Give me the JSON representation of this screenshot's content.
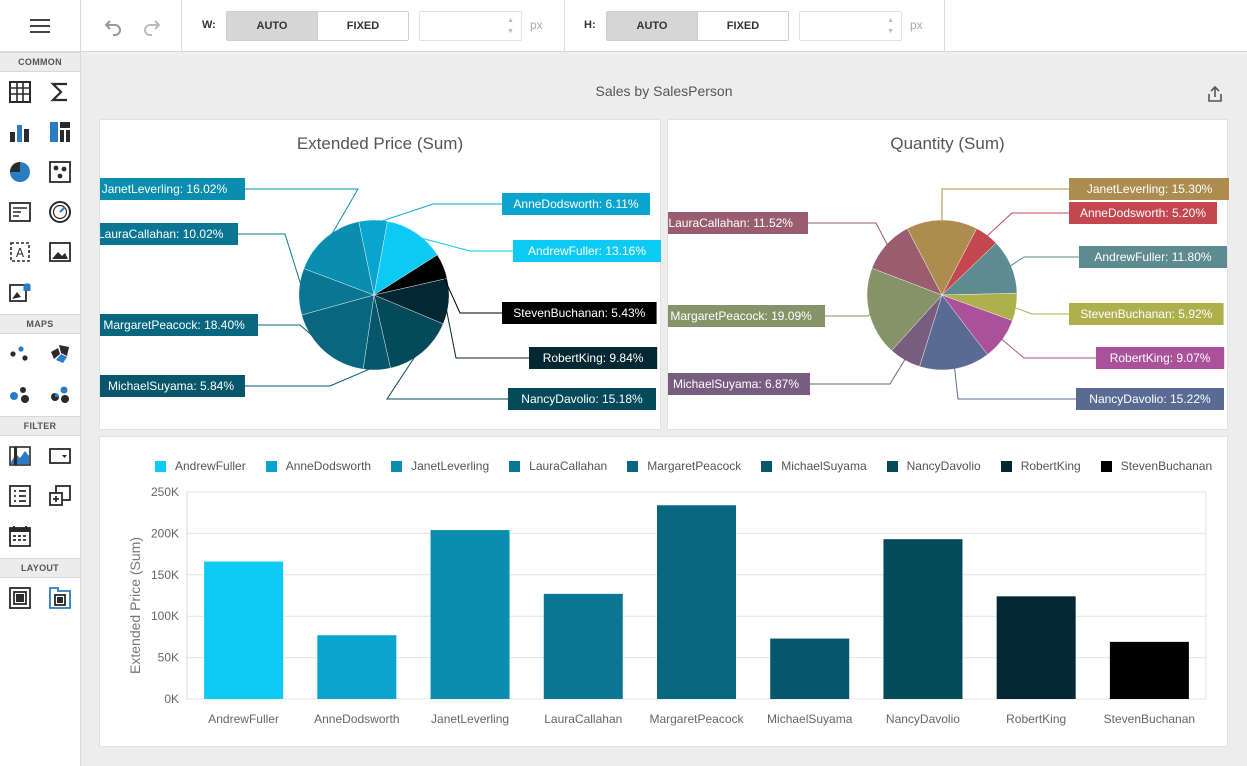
{
  "toolbox": {
    "groups": [
      {
        "title": "COMMON",
        "tools": [
          "grid-icon",
          "sum-icon",
          "bar-chart-icon",
          "treemap-icon",
          "pie-chart-icon",
          "scatter-icon",
          "card-icon",
          "gauge-icon",
          "text-box-icon",
          "image-icon",
          "bound-image-icon"
        ]
      },
      {
        "title": "MAPS",
        "tools": [
          "geo-point-map-icon",
          "choropleth-map-icon",
          "bubble-map-icon",
          "pie-map-icon"
        ]
      },
      {
        "title": "FILTER",
        "tools": [
          "range-filter-icon",
          "combo-box-icon",
          "list-box-icon",
          "tree-view-icon",
          "date-filter-icon"
        ]
      },
      {
        "title": "LAYOUT",
        "tools": [
          "group-icon",
          "tab-container-icon"
        ]
      }
    ]
  },
  "toolbar": {
    "width_label": "W:",
    "height_label": "H:",
    "auto_label": "AUTO",
    "fixed_label": "FIXED",
    "width_mode": "AUTO",
    "height_mode": "AUTO",
    "width_value": "",
    "height_value": "",
    "unit": "px"
  },
  "dashboard": {
    "title": "Sales by SalesPerson"
  },
  "colors": {
    "AndrewFuller": "#0ccaf4",
    "AnneDodsworth": "#0aa5cf",
    "JanetLeverling": "#0a8eb0",
    "LauraCallahan": "#0b7693",
    "MargaretPeacock": "#08677f",
    "MichaelSuyama": "#06576b",
    "NancyDavolio": "#044a5b",
    "RobertKing": "#032833",
    "StevenBuchanan": "#000000"
  },
  "qty_colors": {
    "JanetLeverling": "#ac8c4f",
    "AnneDodsworth": "#c4464e",
    "AndrewFuller": "#5d8b90",
    "StevenBuchanan": "#aeb04e",
    "RobertKing": "#aa5299",
    "NancyDavolio": "#5a6b93",
    "MichaelSuyama": "#795d80",
    "MargaretPeacock": "#859468",
    "LauraCallahan": "#9a5d6f"
  },
  "chart_data": [
    {
      "type": "pie",
      "title": "Extended Price (Sum)",
      "slices": [
        {
          "name": "AndrewFuller",
          "label": "AndrewFuller: 13.16%",
          "value": 13.16
        },
        {
          "name": "StevenBuchanan",
          "label": "StevenBuchanan: 5.43%",
          "value": 5.43
        },
        {
          "name": "RobertKing",
          "label": "RobertKing: 9.84%",
          "value": 9.84
        },
        {
          "name": "NancyDavolio",
          "label": "NancyDavolio: 15.18%",
          "value": 15.18
        },
        {
          "name": "MichaelSuyama",
          "label": "MichaelSuyama: 5.84%",
          "value": 5.84
        },
        {
          "name": "MargaretPeacock",
          "label": "MargaretPeacock: 18.40%",
          "value": 18.4
        },
        {
          "name": "LauraCallahan",
          "label": "LauraCallahan: 10.02%",
          "value": 10.02
        },
        {
          "name": "JanetLeverling",
          "label": "JanetLeverling: 16.02%",
          "value": 16.02
        },
        {
          "name": "AnneDodsworth",
          "label": "AnneDodsworth: 6.11%",
          "value": 6.11
        }
      ]
    },
    {
      "type": "pie",
      "title": "Quantity (Sum)",
      "slices": [
        {
          "name": "AnneDodsworth",
          "label": "AnneDodsworth: 5.20%",
          "value": 5.2
        },
        {
          "name": "AndrewFuller",
          "label": "AndrewFuller: 11.80%",
          "value": 11.8
        },
        {
          "name": "StevenBuchanan",
          "label": "StevenBuchanan: 5.92%",
          "value": 5.92
        },
        {
          "name": "RobertKing",
          "label": "RobertKing: 9.07%",
          "value": 9.07
        },
        {
          "name": "NancyDavolio",
          "label": "NancyDavolio: 15.22%",
          "value": 15.22
        },
        {
          "name": "MichaelSuyama",
          "label": "MichaelSuyama: 6.87%",
          "value": 6.87
        },
        {
          "name": "MargaretPeacock",
          "label": "MargaretPeacock: 19.09%",
          "value": 19.09
        },
        {
          "name": "LauraCallahan",
          "label": "LauraCallahan: 11.52%",
          "value": 11.52
        },
        {
          "name": "JanetLeverling",
          "label": "JanetLeverling: 15.30%",
          "value": 15.3
        }
      ]
    },
    {
      "type": "bar",
      "categories": [
        "AndrewFuller",
        "AnneDodsworth",
        "JanetLeverling",
        "LauraCallahan",
        "MargaretPeacock",
        "MichaelSuyama",
        "NancyDavolio",
        "RobertKing",
        "StevenBuchanan"
      ],
      "values": [
        166000,
        77000,
        204000,
        127000,
        234000,
        73000,
        193000,
        124000,
        69000
      ],
      "ylabel": "Extended Price (Sum)",
      "yticks": [
        "0K",
        "50K",
        "100K",
        "150K",
        "200K",
        "250K"
      ],
      "ylim": [
        0,
        250000
      ],
      "legend": [
        "AndrewFuller",
        "AnneDodsworth",
        "JanetLeverling",
        "LauraCallahan",
        "MargaretPeacock",
        "MichaelSuyama",
        "NancyDavolio",
        "RobertKing",
        "StevenBuchanan"
      ],
      "grid": true,
      "legend_position": "top"
    }
  ]
}
